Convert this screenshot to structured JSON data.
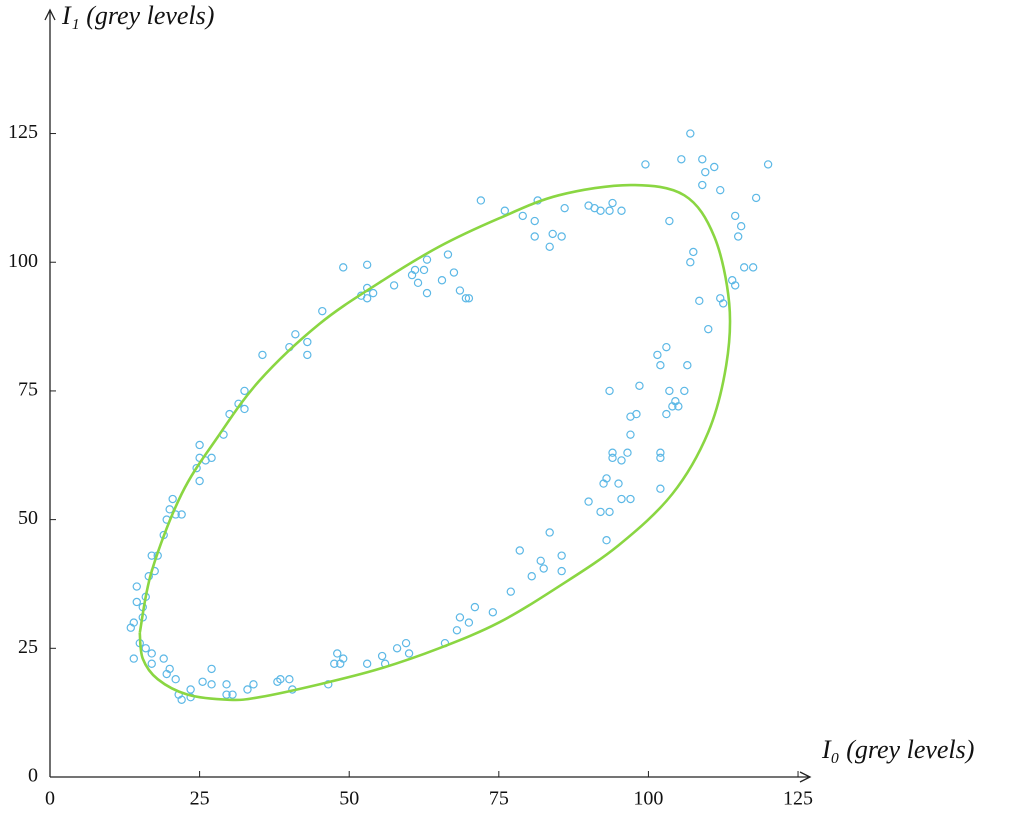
{
  "chart_data": {
    "type": "scatter",
    "x_label": "I₀ (grey levels)",
    "y_label": "I₁ (grey levels)",
    "xlim": [
      0,
      127
    ],
    "ylim": [
      0,
      149
    ],
    "xticks": [
      0,
      25,
      50,
      75,
      100,
      125
    ],
    "yticks": [
      0,
      25,
      50,
      75,
      100,
      125
    ],
    "series": [
      {
        "type": "scatter",
        "color": "#5cb8e6",
        "x": [
          13.5,
          14,
          14.5,
          14.5,
          15,
          14,
          15.5,
          16,
          15.5,
          16,
          17,
          17,
          16.5,
          17.5,
          17,
          18,
          19,
          19.5,
          20,
          20.5,
          21,
          22,
          19,
          19.5,
          20,
          21,
          21.5,
          22,
          23.5,
          23.5,
          25.5,
          27,
          27,
          29.5,
          29.5,
          30.5,
          33,
          34,
          38,
          38.5,
          40.5,
          40,
          46.5,
          47.5,
          48,
          49,
          48.5,
          53,
          55.5,
          56,
          58,
          59.5,
          60,
          66,
          68,
          68.5,
          70,
          71,
          74,
          77,
          78.5,
          80.5,
          82.5,
          82,
          83.5,
          85.5,
          85.5,
          90,
          92,
          92.5,
          93,
          93.5,
          93,
          94,
          94,
          95,
          95.5,
          95.5,
          96.5,
          97,
          97,
          97,
          98,
          98.5,
          93.5,
          101.5,
          102,
          102,
          102,
          102,
          103,
          103,
          103.5,
          104,
          104.5,
          105,
          106,
          106.5,
          107,
          107.5,
          108.5,
          110,
          112,
          112.5,
          114,
          114.5,
          114.5,
          115,
          115.5,
          116,
          117.5,
          118,
          120,
          111,
          112,
          109,
          109.5,
          109,
          105.5,
          107,
          99.5,
          103.5,
          95.5,
          94,
          93.5,
          92,
          91,
          90,
          86,
          84,
          85.5,
          83.5,
          81.5,
          81,
          81,
          79,
          76,
          72,
          70,
          69.5,
          68.5,
          67.5,
          66.5,
          65.5,
          63,
          62.5,
          63,
          61.5,
          61,
          60.5,
          57.5,
          54,
          53,
          53,
          52,
          53,
          49,
          45.5,
          43,
          43,
          41,
          40,
          35.5,
          32.5,
          32.5,
          31.5,
          30,
          29,
          27,
          26,
          25,
          25,
          25,
          24.5
        ],
        "y": [
          29,
          30,
          37,
          34,
          26,
          23,
          31,
          35,
          33,
          25,
          22,
          24,
          39,
          40,
          43,
          43,
          47,
          50,
          52,
          54,
          51,
          51,
          23,
          20,
          21,
          19,
          16,
          15,
          17,
          15.5,
          18.5,
          21,
          18,
          18,
          16,
          16,
          17,
          18,
          18.5,
          19,
          17,
          19,
          18,
          22,
          24,
          23,
          22,
          22,
          23.5,
          22,
          25,
          26,
          24,
          26,
          28.5,
          31,
          30,
          33,
          32,
          36,
          44,
          39,
          40.5,
          42,
          47.5,
          43,
          40,
          53.5,
          51.5,
          57,
          58,
          51.5,
          46,
          63,
          62,
          57,
          61.5,
          54,
          63,
          54,
          66.5,
          70,
          70.5,
          76,
          75,
          82,
          80,
          63,
          62,
          56,
          70.5,
          83.5,
          75,
          72,
          73,
          72,
          75,
          80,
          100,
          102,
          92.5,
          87,
          93,
          92,
          96.5,
          95.5,
          109,
          105,
          107,
          99,
          99,
          112.5,
          119,
          118.5,
          114,
          115,
          117.5,
          120,
          120,
          125,
          119,
          108,
          110,
          111.5,
          110,
          110,
          110.5,
          111,
          110.5,
          105.5,
          105,
          103,
          112,
          108,
          105,
          109,
          110,
          112,
          93,
          93,
          94.5,
          98,
          101.5,
          96.5,
          94,
          98.5,
          100.5,
          96,
          98.5,
          97.5,
          95.5,
          94,
          95,
          93,
          93.5,
          99.5,
          99,
          90.5,
          84.5,
          82,
          86,
          83.5,
          82,
          75,
          71.5,
          72.5,
          70.5,
          66.5,
          62,
          61.5,
          64.5,
          62,
          57.5,
          60
        ]
      },
      {
        "type": "line",
        "color": "#8ad642",
        "x": [
          15,
          17,
          22,
          28,
          35,
          45,
          55,
          65,
          75,
          85,
          97,
          106,
          111,
          113.5,
          113,
          110,
          104,
          95,
          85,
          75,
          65,
          55,
          45,
          35,
          30,
          23,
          18,
          15.5,
          15
        ],
        "y": [
          28,
          40,
          55,
          66,
          77,
          88,
          96,
          103,
          108.5,
          113,
          115,
          113,
          105,
          92,
          80,
          67,
          55,
          45,
          37,
          30,
          25,
          21,
          18,
          15.5,
          15,
          16,
          19,
          23,
          28
        ]
      }
    ]
  }
}
